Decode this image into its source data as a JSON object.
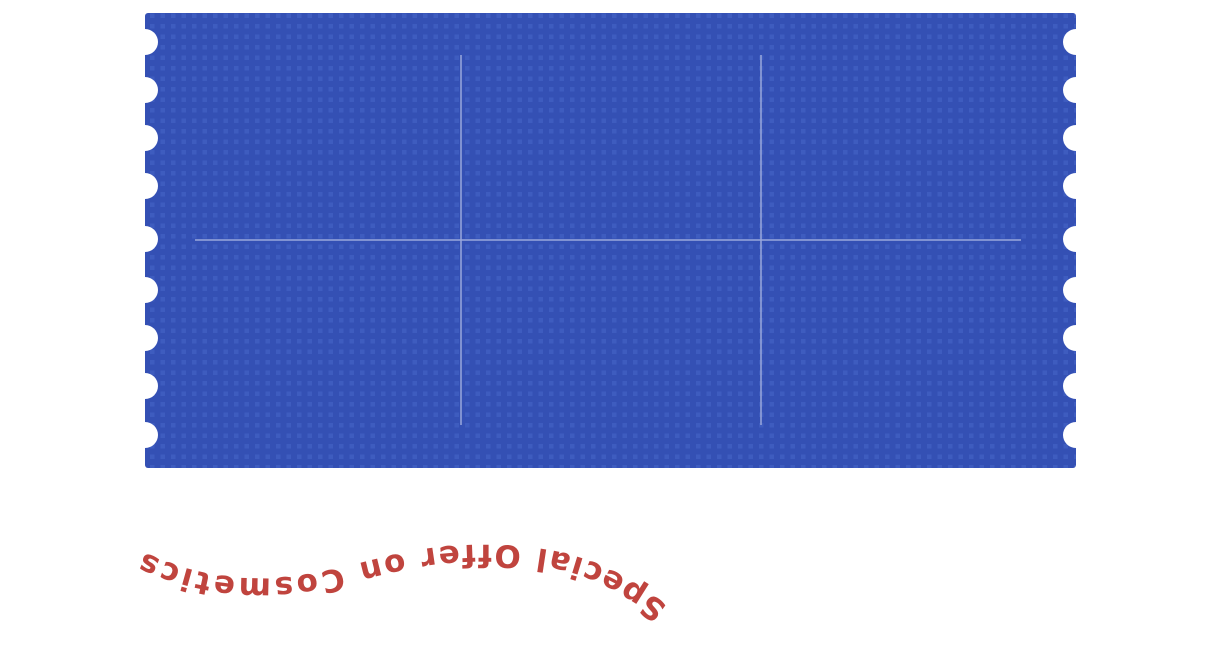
{
  "ticket": {
    "color": "#3450b4",
    "dot_color": "#4060c0",
    "line_color": "#9aa8dc"
  },
  "headline": {
    "text": "Special Offer on Cosmetics",
    "color": "#c0443e"
  }
}
